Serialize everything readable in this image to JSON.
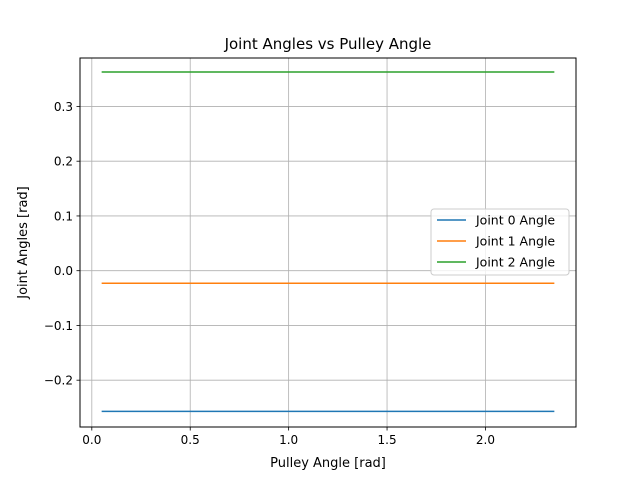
{
  "chart_data": {
    "type": "line",
    "title": "Joint Angles vs Pulley Angle",
    "xlabel": "Pulley Angle [rad]",
    "ylabel": "Joint Angles [rad]",
    "xlim": [
      -0.06,
      2.46
    ],
    "ylim": [
      -0.2855,
      0.3885
    ],
    "xticks": [
      0.0,
      0.5,
      1.0,
      1.5,
      2.0
    ],
    "xtick_labels": [
      "0.0",
      "0.5",
      "1.0",
      "1.5",
      "2.0"
    ],
    "yticks": [
      -0.2,
      -0.1,
      0.0,
      0.1,
      0.2,
      0.3
    ],
    "ytick_labels": [
      "−0.2",
      "−0.1",
      "0.0",
      "0.1",
      "0.2",
      "0.3"
    ],
    "grid": true,
    "legend_position": "center-right",
    "x": [
      0.05,
      2.35
    ],
    "series": [
      {
        "name": "Joint 0 Angle",
        "color": "#1f77b4",
        "values": [
          -0.257,
          -0.257
        ]
      },
      {
        "name": "Joint 1 Angle",
        "color": "#ff7f0e",
        "values": [
          -0.023,
          -0.023
        ]
      },
      {
        "name": "Joint 2 Angle",
        "color": "#2ca02c",
        "values": [
          0.363,
          0.363
        ]
      }
    ]
  }
}
